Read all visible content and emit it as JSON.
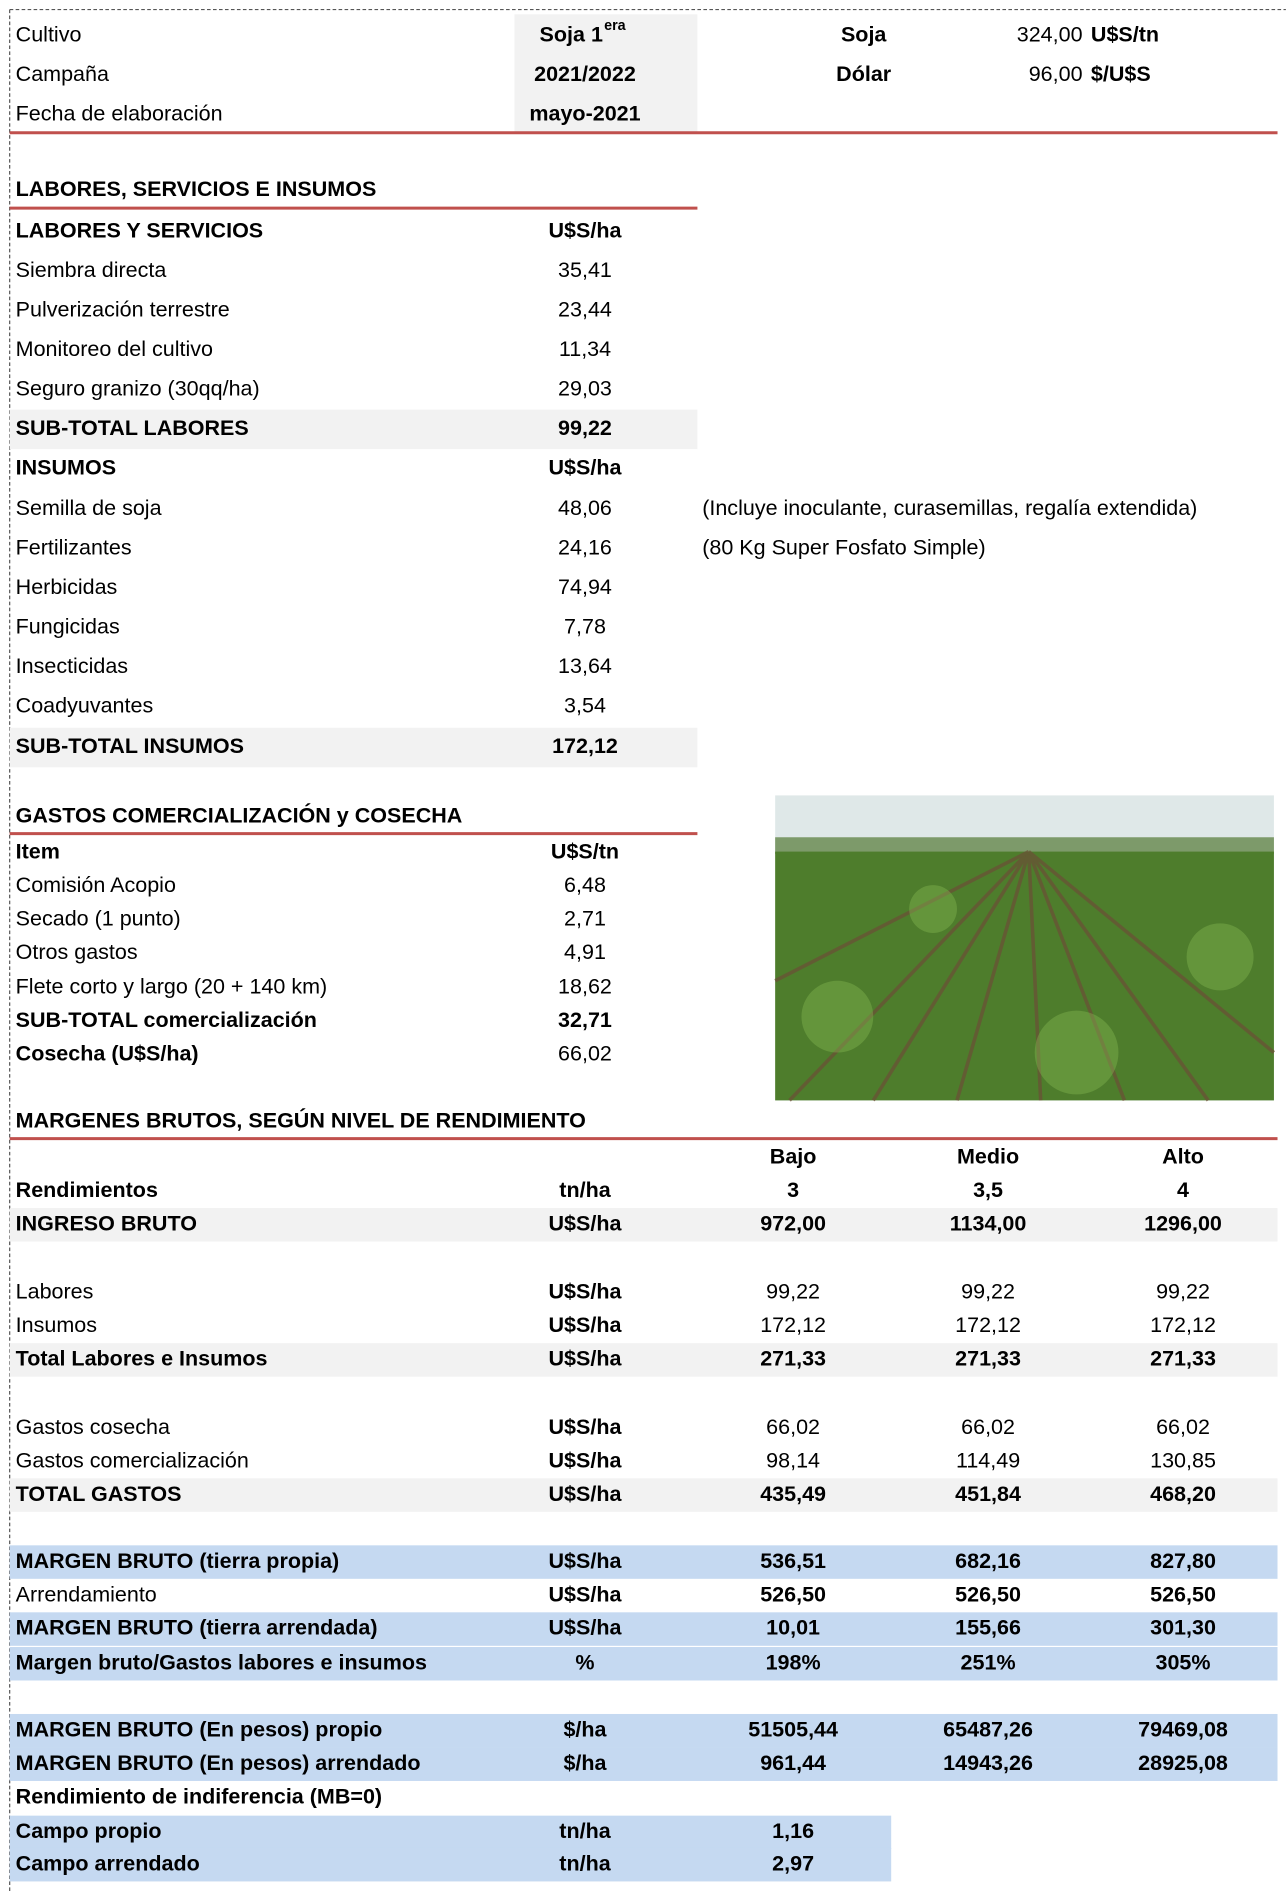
{
  "header": {
    "rows": [
      {
        "label": "Cultivo",
        "value": "Soja 1",
        "sup": "era"
      },
      {
        "label": "Campaña",
        "value": "2021/2022"
      },
      {
        "label": "Fecha de elaboración",
        "value": "mayo-2021"
      }
    ],
    "prices": [
      {
        "name": "Soja",
        "value": "324,00",
        "unit": "U$S/tn"
      },
      {
        "name": "Dólar",
        "value": "96,00",
        "unit": "$/U$S"
      }
    ]
  },
  "labores": {
    "title": "LABORES, SERVICIOS E INSUMOS",
    "rows": [
      {
        "label": "LABORES Y SERVICIOS",
        "value": "U$S/ha"
      },
      {
        "label": "Siembra directa",
        "value": "35,41"
      },
      {
        "label": "Pulverización terrestre",
        "value": "23,44"
      },
      {
        "label": "Monitoreo del cultivo",
        "value": "11,34"
      },
      {
        "label": "Seguro granizo (30qq/ha)",
        "value": "29,03"
      },
      {
        "label": "SUB-TOTAL LABORES",
        "value": "99,22"
      },
      {
        "label": "INSUMOS",
        "value": "U$S/ha"
      },
      {
        "label": "Semilla de soja",
        "value": "48,06",
        "note": "(Incluye inoculante, curasemillas, regalía extendida)"
      },
      {
        "label": "Fertilizantes",
        "value": "24,16",
        "note": "(80 Kg Super Fosfato Simple)"
      },
      {
        "label": "Herbicidas",
        "value": "74,94"
      },
      {
        "label": "Fungicidas",
        "value": "7,78"
      },
      {
        "label": "Insecticidas",
        "value": "13,64"
      },
      {
        "label": "Coadyuvantes",
        "value": "3,54"
      },
      {
        "label": "SUB-TOTAL INSUMOS",
        "value": "172,12"
      }
    ]
  },
  "gastos": {
    "title": "GASTOS COMERCIALIZACIÓN y COSECHA",
    "rows": [
      {
        "label": "Item",
        "value": "U$S/tn"
      },
      {
        "label": "Comisión Acopio",
        "value": "6,48"
      },
      {
        "label": "Secado (1 punto)",
        "value": "2,71"
      },
      {
        "label": "Otros gastos",
        "value": "4,91"
      },
      {
        "label": "Flete corto y largo  (20 + 140 km)",
        "value": "18,62"
      },
      {
        "label": "SUB-TOTAL comercialización",
        "value": "32,71"
      },
      {
        "label": "Cosecha  (U$S/ha)",
        "value": "66,02"
      }
    ]
  },
  "margenes": {
    "title": "MARGENES BRUTOS, SEGÚN NIVEL DE RENDIMIENTO",
    "levels": [
      "Bajo",
      "Medio",
      "Alto"
    ],
    "rows": [
      {
        "label": "Rendimientos",
        "unit": "tn/ha",
        "values": [
          "3",
          "3,5",
          "4"
        ]
      },
      {
        "label": "INGRESO BRUTO",
        "unit": "U$S/ha",
        "values": [
          "972,00",
          "1134,00",
          "1296,00"
        ]
      },
      {
        "label": "Labores",
        "unit": "U$S/ha",
        "values": [
          "99,22",
          "99,22",
          "99,22"
        ]
      },
      {
        "label": "Insumos",
        "unit": "U$S/ha",
        "values": [
          "172,12",
          "172,12",
          "172,12"
        ]
      },
      {
        "label": "Total Labores e Insumos",
        "unit": "U$S/ha",
        "values": [
          "271,33",
          "271,33",
          "271,33"
        ]
      },
      {
        "label": "Gastos cosecha",
        "unit": "U$S/ha",
        "values": [
          "66,02",
          "66,02",
          "66,02"
        ]
      },
      {
        "label": "Gastos comercialización",
        "unit": "U$S/ha",
        "values": [
          "98,14",
          "114,49",
          "130,85"
        ]
      },
      {
        "label": "TOTAL GASTOS",
        "unit": "U$S/ha",
        "values": [
          "435,49",
          "451,84",
          "468,20"
        ]
      },
      {
        "label": "MARGEN BRUTO (tierra propia)",
        "unit": "U$S/ha",
        "values": [
          "536,51",
          "682,16",
          "827,80"
        ]
      },
      {
        "label": "Arrendamiento",
        "unit": "U$S/ha",
        "values": [
          "526,50",
          "526,50",
          "526,50"
        ]
      },
      {
        "label": "MARGEN BRUTO (tierra arrendada)",
        "unit": "U$S/ha",
        "values": [
          "10,01",
          "155,66",
          "301,30"
        ]
      },
      {
        "label": "Margen bruto/Gastos labores e insumos",
        "unit": "%",
        "values": [
          "198%",
          "251%",
          "305%"
        ]
      },
      {
        "label": "MARGEN BRUTO (En pesos) propio",
        "unit": "$/ha",
        "values": [
          "51505,44",
          "65487,26",
          "79469,08"
        ]
      },
      {
        "label": "MARGEN BRUTO (En pesos) arrendado",
        "unit": "$/ha",
        "values": [
          "961,44",
          "14943,26",
          "28925,08"
        ]
      }
    ]
  },
  "indiferencia": {
    "title": "Rendimiento de indiferencia (MB=0)",
    "rows": [
      {
        "label": "Campo propio",
        "unit": "tn/ha",
        "value": "1,16"
      },
      {
        "label": "Campo arrendado",
        "unit": "tn/ha",
        "value": "2,97"
      }
    ]
  }
}
